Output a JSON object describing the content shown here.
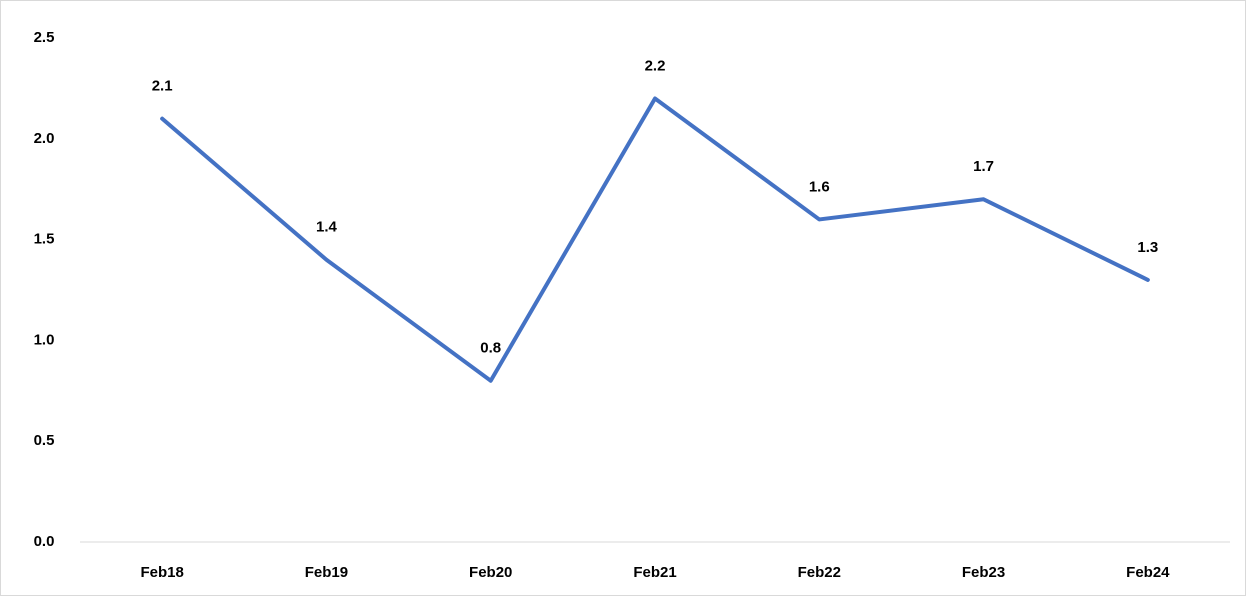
{
  "chart_data": {
    "type": "line",
    "categories": [
      "Feb18",
      "Feb19",
      "Feb20",
      "Feb21",
      "Feb22",
      "Feb23",
      "Feb24"
    ],
    "values": [
      2.1,
      1.4,
      0.8,
      2.2,
      1.6,
      1.7,
      1.3
    ],
    "color": "#4472c4",
    "ylim": [
      0,
      2.5
    ],
    "yticks": [
      {
        "value": 0,
        "label": "0.0"
      },
      0.5,
      {
        "value": 1,
        "label": "1.0"
      },
      1.5,
      {
        "value": 2,
        "label": "2.0"
      },
      2.5
    ],
    "grid": false
  }
}
